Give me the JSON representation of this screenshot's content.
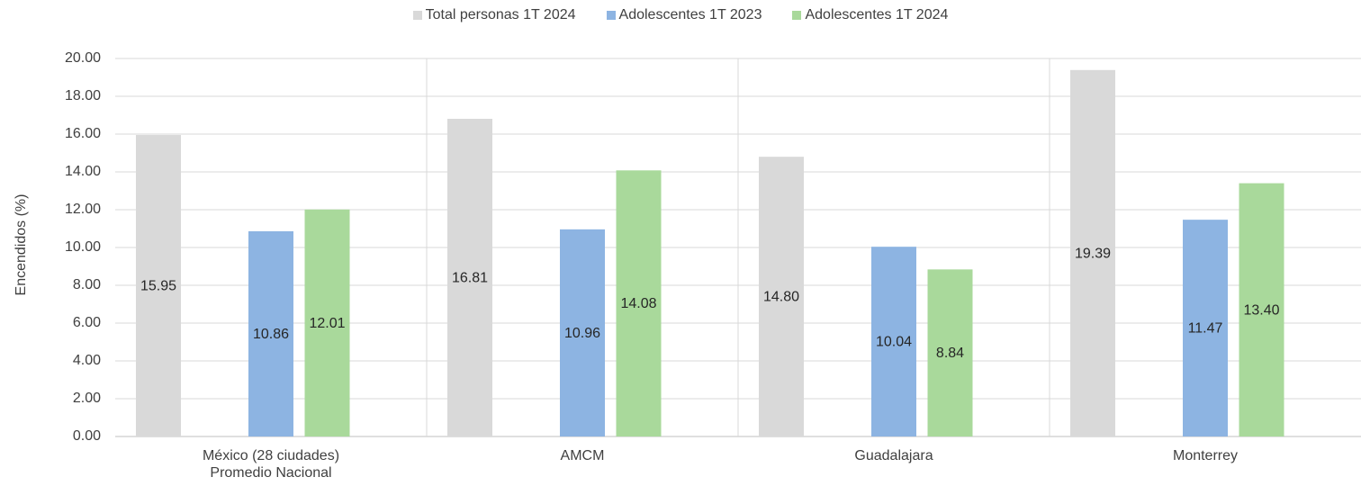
{
  "chart_data": {
    "type": "bar",
    "ylabel": "Encendidos (%)",
    "xlabel": "",
    "ylim": [
      0,
      20
    ],
    "yticks": [
      "0.00",
      "2.00",
      "4.00",
      "6.00",
      "8.00",
      "10.00",
      "12.00",
      "14.00",
      "16.00",
      "18.00",
      "20.00"
    ],
    "categories": [
      [
        "México (28 ciudades)",
        "Promedio Nacional"
      ],
      [
        "AMCM"
      ],
      [
        "Guadalajara"
      ],
      [
        "Monterrey"
      ]
    ],
    "series": [
      {
        "name": "Total personas 1T 2024",
        "color": "#d9d9d9",
        "values": [
          15.95,
          16.81,
          14.8,
          19.39
        ],
        "labels": [
          "15.95",
          "16.81",
          "14.80",
          "19.39"
        ]
      },
      {
        "name": "Adolescentes 1T 2023",
        "color": "#8db4e2",
        "values": [
          10.86,
          10.96,
          10.04,
          11.47
        ],
        "labels": [
          "10.86",
          "10.96",
          "10.04",
          "11.47"
        ]
      },
      {
        "name": "Adolescentes 1T 2024",
        "color": "#a9d99b",
        "values": [
          12.01,
          14.08,
          8.84,
          13.4
        ],
        "labels": [
          "12.01",
          "14.08",
          "8.84",
          "13.40"
        ]
      }
    ],
    "legend_position": "top",
    "grid": {
      "horizontal": true,
      "category_separators": true
    }
  }
}
